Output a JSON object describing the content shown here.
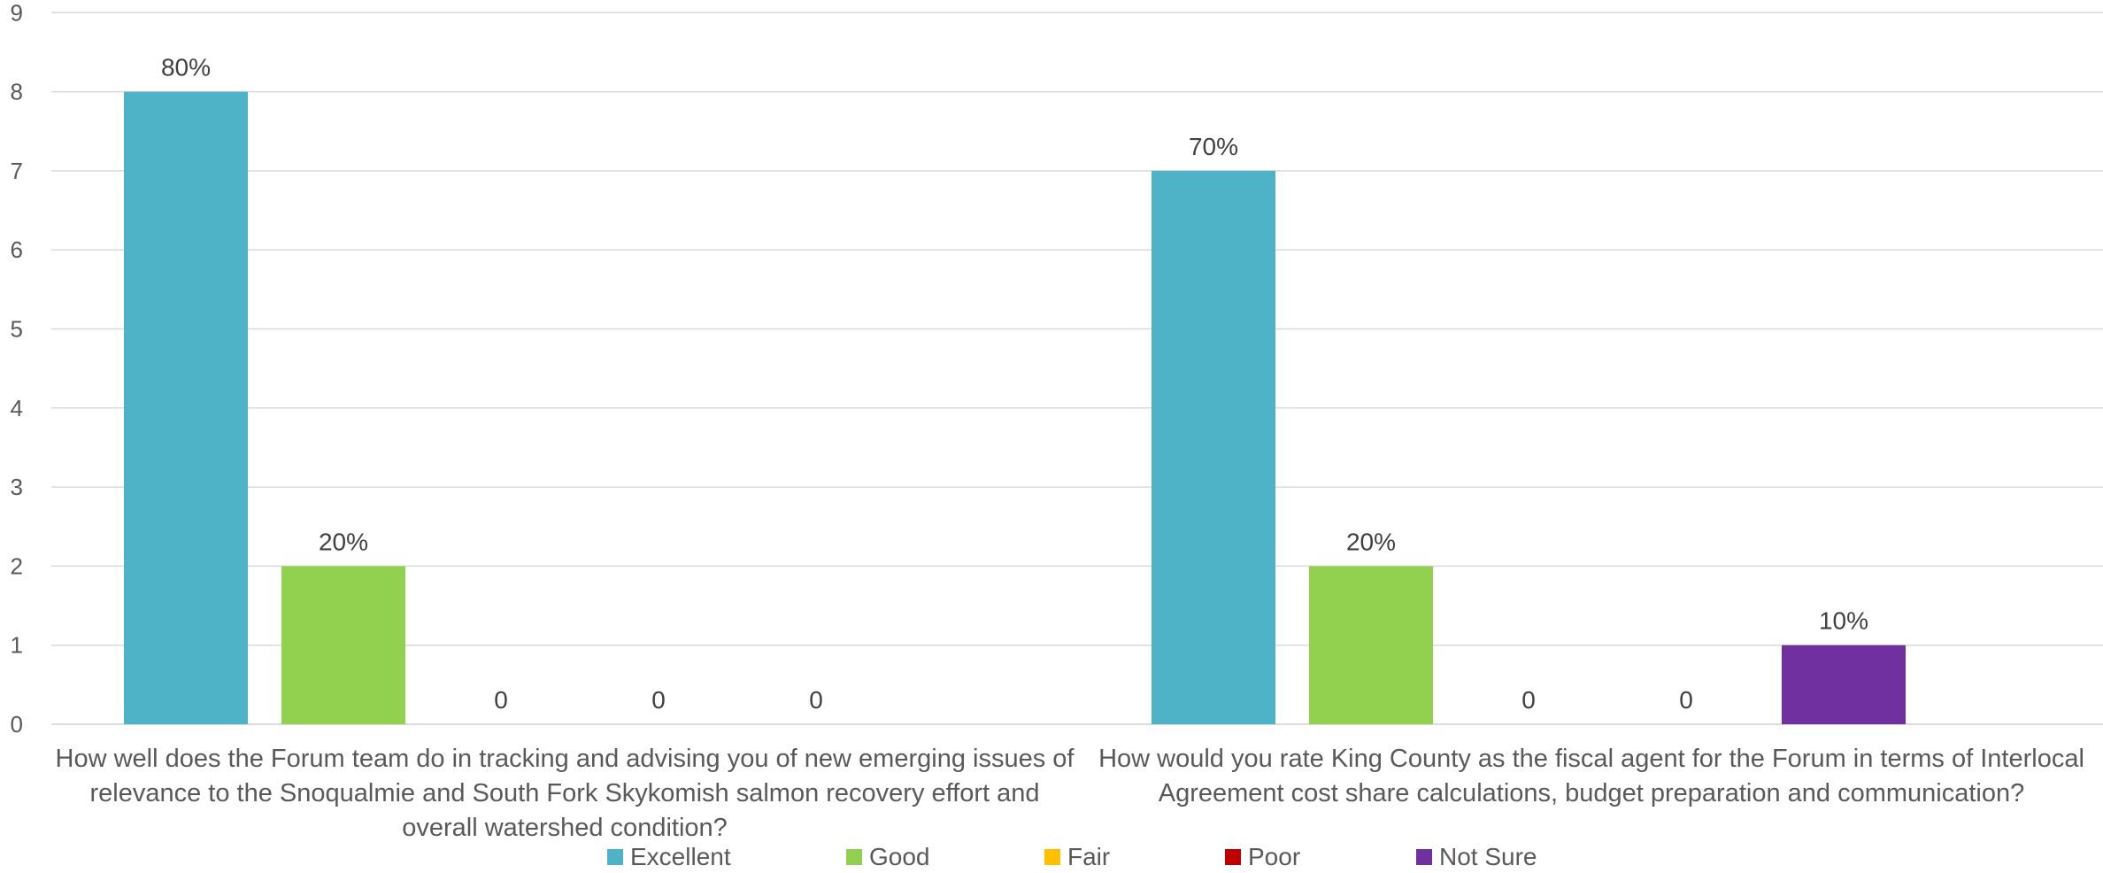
{
  "chart_data": {
    "type": "bar",
    "categories": [
      "How well does the Forum team do in tracking and advising you of new emerging issues of relevance to the Snoqualmie and South Fork Skykomish salmon recovery effort and overall watershed condition?",
      "How would you rate King County as the fiscal agent for the Forum in terms of Interlocal Agreement cost share calculations, budget preparation and communication?"
    ],
    "series": [
      {
        "name": "Excellent",
        "color": "#4FB3C8",
        "values": [
          8,
          7
        ],
        "labels": [
          "80%",
          "70%"
        ]
      },
      {
        "name": "Good",
        "color": "#92D050",
        "values": [
          2,
          2
        ],
        "labels": [
          "20%",
          "20%"
        ]
      },
      {
        "name": "Fair",
        "color": "#FFC000",
        "values": [
          0,
          0
        ],
        "labels": [
          "0",
          "0"
        ]
      },
      {
        "name": "Poor",
        "color": "#C00000",
        "values": [
          0,
          0
        ],
        "labels": [
          "0",
          "0"
        ]
      },
      {
        "name": "Not Sure",
        "color": "#7030A0",
        "values": [
          0,
          1
        ],
        "labels": [
          "0",
          "10%"
        ]
      }
    ],
    "yticks": [
      "0",
      "1",
      "2",
      "3",
      "4",
      "5",
      "6",
      "7",
      "8",
      "9"
    ],
    "ylim": [
      0,
      9
    ],
    "grid": true,
    "legend_position": "bottom"
  }
}
